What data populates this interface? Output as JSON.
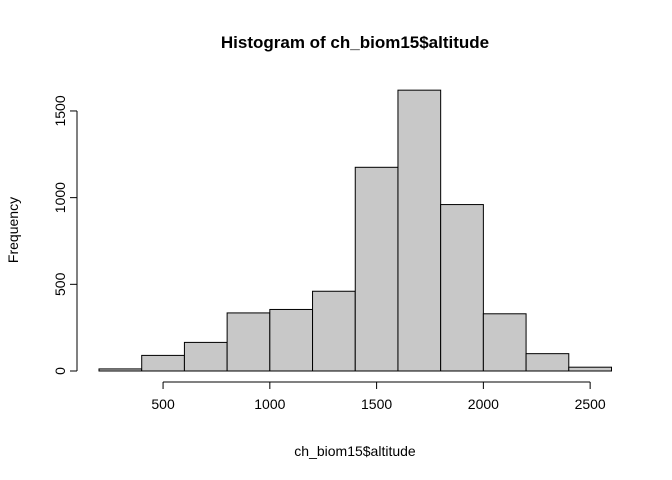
{
  "chart_data": {
    "type": "bar",
    "title": "Histogram of ch_biom15$altitude",
    "xlabel": "ch_biom15$altitude",
    "ylabel": "Frequency",
    "bins": [
      {
        "from": 200,
        "to": 400,
        "count": 12
      },
      {
        "from": 400,
        "to": 600,
        "count": 90
      },
      {
        "from": 600,
        "to": 800,
        "count": 165
      },
      {
        "from": 800,
        "to": 1000,
        "count": 335
      },
      {
        "from": 1000,
        "to": 1200,
        "count": 355
      },
      {
        "from": 1200,
        "to": 1400,
        "count": 460
      },
      {
        "from": 1400,
        "to": 1600,
        "count": 1175
      },
      {
        "from": 1600,
        "to": 1800,
        "count": 1620
      },
      {
        "from": 1800,
        "to": 2000,
        "count": 960
      },
      {
        "from": 2000,
        "to": 2200,
        "count": 330
      },
      {
        "from": 2200,
        "to": 2400,
        "count": 100
      },
      {
        "from": 2400,
        "to": 2600,
        "count": 22
      }
    ],
    "xlim": [
      200,
      2600
    ],
    "ylim": [
      0,
      1620
    ],
    "x_ticks": [
      500,
      1000,
      1500,
      2000,
      2500
    ],
    "y_ticks": [
      0,
      500,
      1000,
      1500
    ],
    "x_tick_labels": [
      "500",
      "1000",
      "1500",
      "2000",
      "2500"
    ],
    "y_tick_labels": [
      "0",
      "500",
      "1000",
      "1500"
    ],
    "bar_color": "#c8c8c8",
    "grid": false,
    "legend": "none"
  }
}
